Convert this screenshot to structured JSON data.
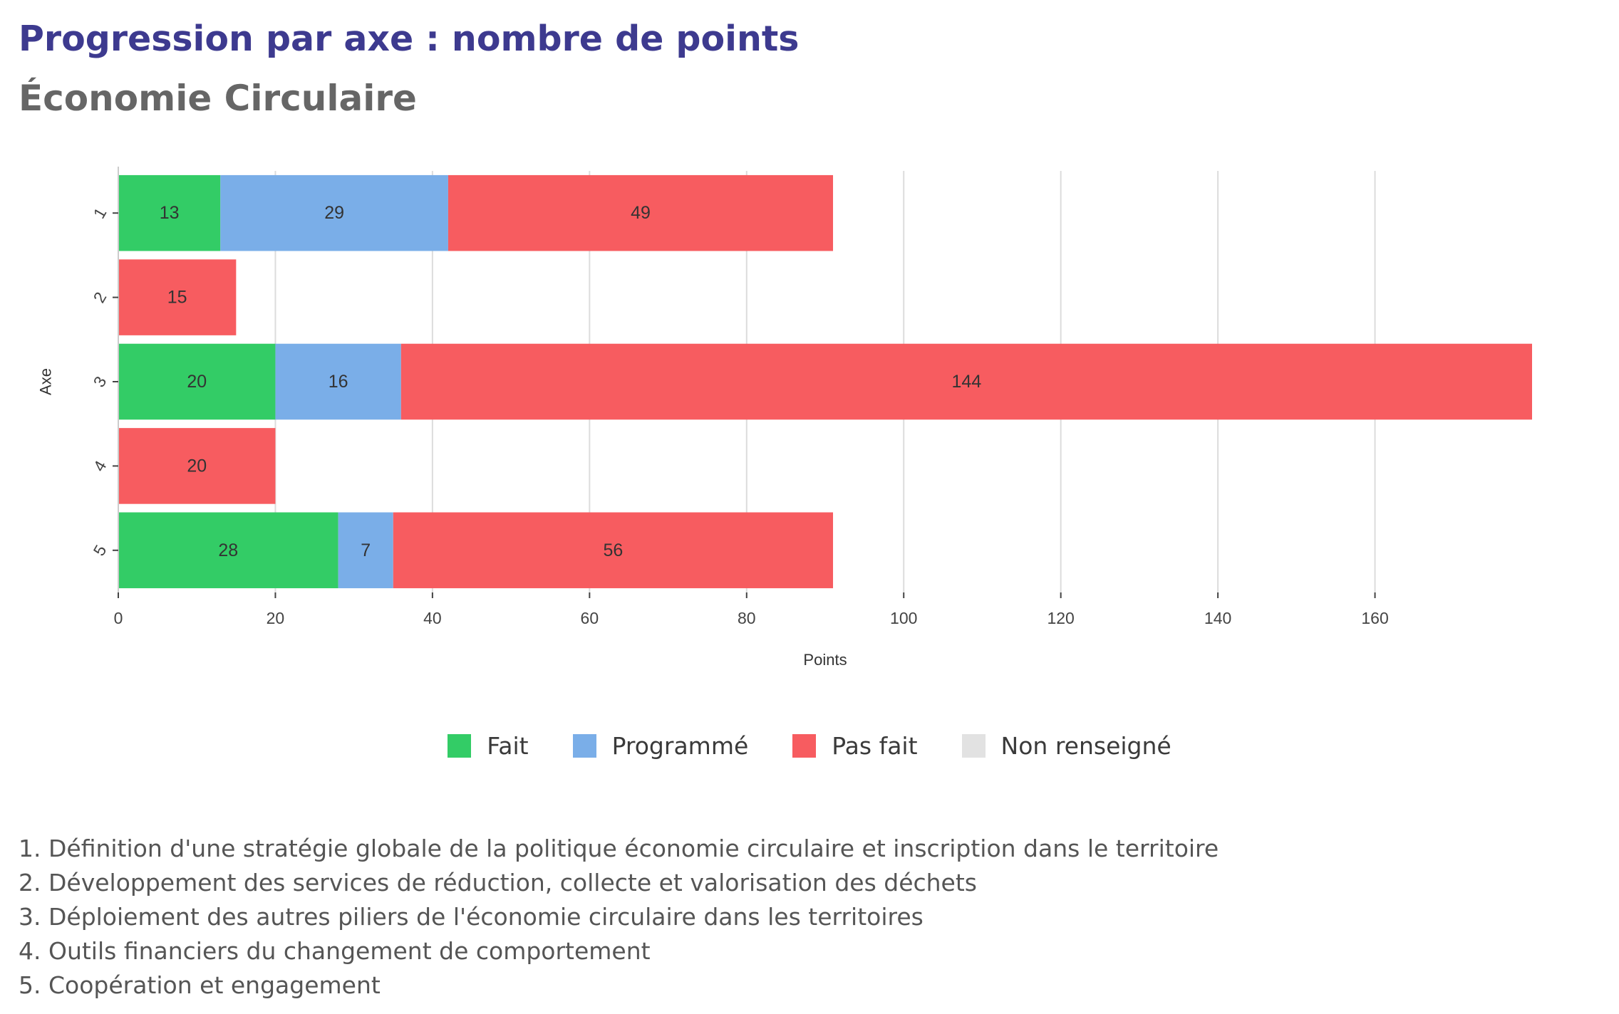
{
  "title": "Progression par axe : nombre de points",
  "subtitle": "Économie Circulaire",
  "chart_data": {
    "type": "bar",
    "orientation": "horizontal",
    "stacked": true,
    "categories": [
      "1",
      "2",
      "3",
      "4",
      "5"
    ],
    "series": [
      {
        "name": "Fait",
        "color": "#33cc66",
        "values": [
          13,
          0,
          20,
          0,
          28
        ]
      },
      {
        "name": "Programmé",
        "color": "#7aaee8",
        "values": [
          29,
          0,
          16,
          0,
          7
        ]
      },
      {
        "name": "Pas fait",
        "color": "#f75c60",
        "values": [
          49,
          15,
          144,
          20,
          56
        ]
      },
      {
        "name": "Non renseigné",
        "color": "#e2e2e2",
        "values": [
          0,
          0,
          0,
          0,
          0
        ]
      }
    ],
    "xlabel": "Points",
    "ylabel": "Axe",
    "xlim": [
      0,
      180
    ],
    "xticks": [
      0,
      20,
      40,
      60,
      80,
      100,
      120,
      140,
      160
    ],
    "grid": true,
    "legend": "bottom-center"
  },
  "legend_items": [
    {
      "label": "Fait",
      "color": "#33cc66"
    },
    {
      "label": "Programmé",
      "color": "#7aaee8"
    },
    {
      "label": "Pas fait",
      "color": "#f75c60"
    },
    {
      "label": "Non renseigné",
      "color": "#e2e2e2"
    }
  ],
  "axis_notes": [
    "1. Définition d'une stratégie globale de la politique économie circulaire et inscription dans le territoire",
    "2. Développement des services de réduction, collecte et valorisation des déchets",
    "3. Déploiement des autres piliers de l'économie circulaire dans les territoires",
    "4. Outils financiers du changement de comportement",
    "5. Coopération et engagement"
  ]
}
